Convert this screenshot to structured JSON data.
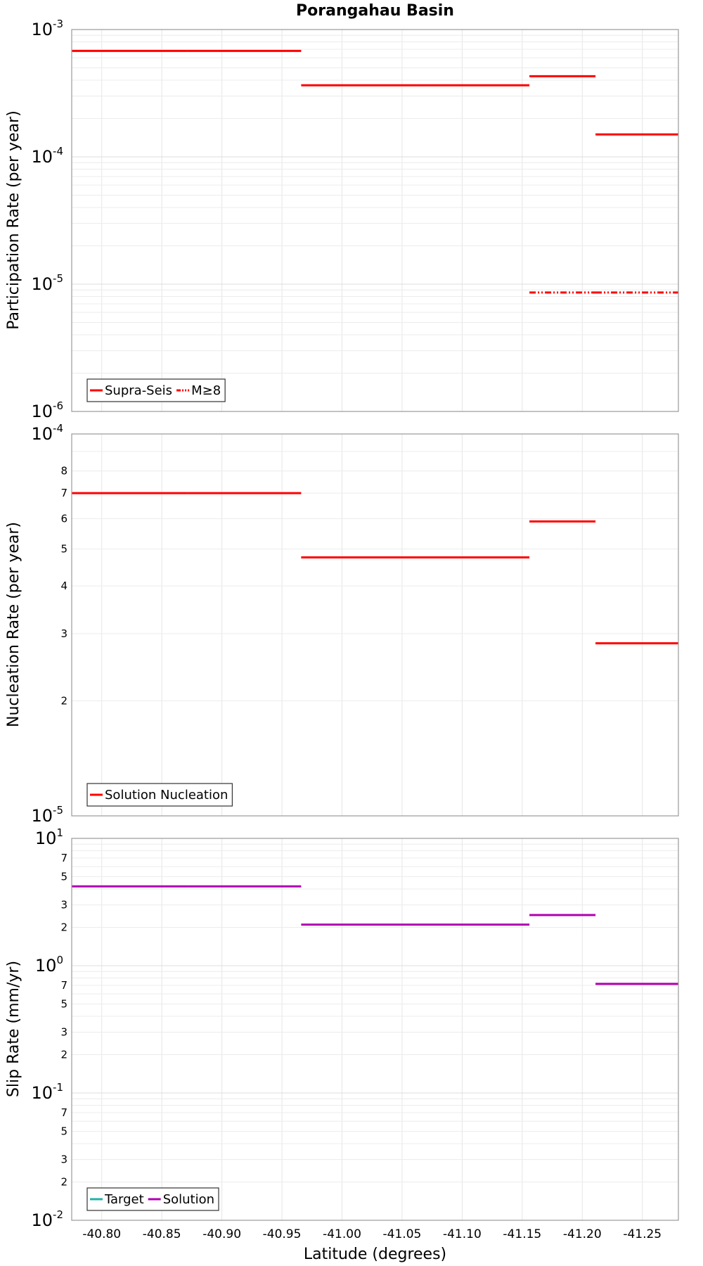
{
  "chart_data": [
    {
      "type": "line",
      "title": "Porangahau Basin",
      "ylabel": "Participation Rate (per year)",
      "yscale": "log",
      "ylim": [
        1e-06,
        0.001
      ],
      "xlim": [
        -40.775,
        -41.28
      ],
      "x_reversed": true,
      "grid": true,
      "legend": {
        "placement": "bottom-left",
        "entries": [
          "Supra-Seis",
          "M≥8"
        ]
      },
      "series": [
        {
          "name": "Supra-Seis",
          "color": "#ff0000",
          "style": "solid",
          "segments": [
            {
              "x": [
                -40.775,
                -40.871
              ],
              "y": 0.00068
            },
            {
              "x": [
                -40.871,
                -40.966
              ],
              "y": 0.00068
            },
            {
              "x": [
                -40.966,
                -41.062
              ],
              "y": 0.000365
            },
            {
              "x": [
                -41.062,
                -41.156
              ],
              "y": 0.000365
            },
            {
              "x": [
                -41.156,
                -41.211
              ],
              "y": 0.00043
            },
            {
              "x": [
                -41.211,
                -41.28
              ],
              "y": 0.00015
            }
          ]
        },
        {
          "name": "M≥8",
          "color": "#ff0000",
          "style": "dash-dot",
          "segments": [
            {
              "x": [
                -41.156,
                -41.211
              ],
              "y": 8.6e-06
            },
            {
              "x": [
                -41.211,
                -41.28
              ],
              "y": 8.6e-06
            }
          ]
        }
      ]
    },
    {
      "type": "line",
      "ylabel": "Nucleation Rate (per year)",
      "yscale": "log",
      "ylim": [
        1e-05,
        0.0001
      ],
      "xlim": [
        -40.775,
        -41.28
      ],
      "x_reversed": true,
      "grid": true,
      "legend": {
        "placement": "bottom-left",
        "entries": [
          "Solution Nucleation"
        ]
      },
      "series": [
        {
          "name": "Solution Nucleation",
          "color": "#ff0000",
          "style": "solid",
          "segments": [
            {
              "x": [
                -40.775,
                -40.871
              ],
              "y": 7e-05
            },
            {
              "x": [
                -40.871,
                -40.966
              ],
              "y": 7e-05
            },
            {
              "x": [
                -40.966,
                -41.062
              ],
              "y": 4.75e-05
            },
            {
              "x": [
                -41.062,
                -41.156
              ],
              "y": 4.75e-05
            },
            {
              "x": [
                -41.156,
                -41.211
              ],
              "y": 5.9e-05
            },
            {
              "x": [
                -41.211,
                -41.28
              ],
              "y": 2.83e-05
            }
          ]
        }
      ]
    },
    {
      "type": "line",
      "ylabel": "Slip Rate (mm/yr)",
      "xlabel": "Latitude (degrees)",
      "yscale": "log",
      "ylim": [
        0.01,
        10
      ],
      "xlim": [
        -40.775,
        -41.28
      ],
      "x_reversed": true,
      "x_ticks": [
        -40.8,
        -40.85,
        -40.9,
        -40.95,
        -41.0,
        -41.05,
        -41.1,
        -41.15,
        -41.2,
        -41.25
      ],
      "x_tick_labels": [
        "-40.80",
        "-40.85",
        "-40.90",
        "-40.95",
        "-41.00",
        "-41.05",
        "-41.10",
        "-41.15",
        "-41.20",
        "-41.25"
      ],
      "grid": true,
      "legend": {
        "placement": "bottom-left",
        "entries": [
          "Target",
          "Solution"
        ]
      },
      "series": [
        {
          "name": "Target",
          "color": "#20b2aa",
          "style": "solid",
          "segments": []
        },
        {
          "name": "Solution",
          "color": "#b000b0",
          "style": "solid",
          "segments": [
            {
              "x": [
                -40.775,
                -40.871
              ],
              "y": 4.2
            },
            {
              "x": [
                -40.871,
                -40.966
              ],
              "y": 4.2
            },
            {
              "x": [
                -40.966,
                -41.062
              ],
              "y": 2.1
            },
            {
              "x": [
                -41.062,
                -41.156
              ],
              "y": 2.1
            },
            {
              "x": [
                -41.156,
                -41.211
              ],
              "y": 2.5
            },
            {
              "x": [
                -41.211,
                -41.28
              ],
              "y": 0.72
            }
          ]
        }
      ]
    }
  ]
}
